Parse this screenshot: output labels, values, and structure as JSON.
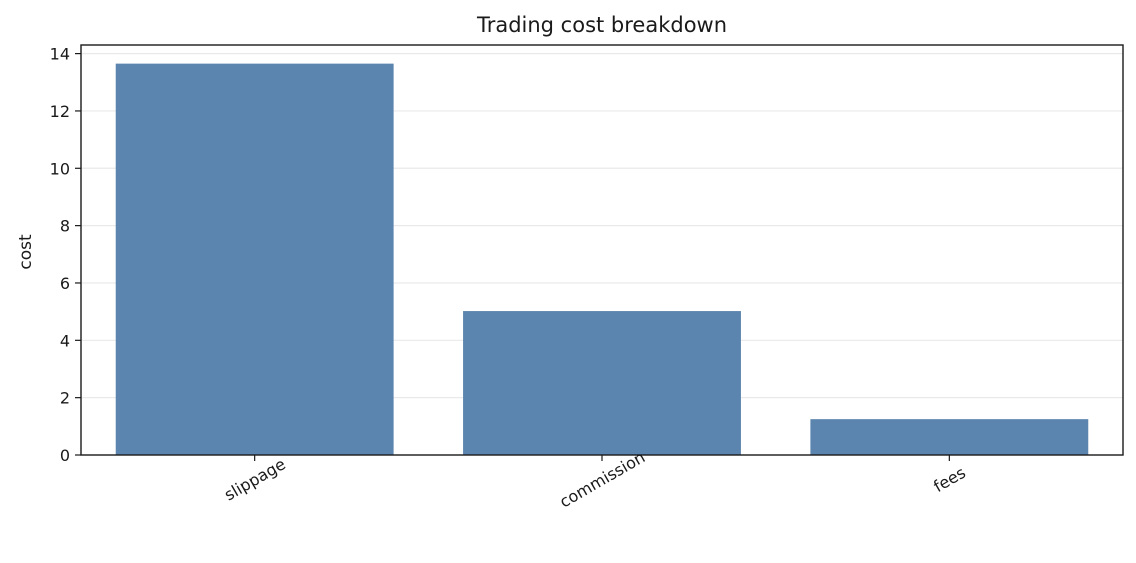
{
  "chart_data": {
    "type": "bar",
    "title": "Trading cost breakdown",
    "xlabel": "",
    "ylabel": "cost",
    "categories": [
      "slippage",
      "commission",
      "fees"
    ],
    "values": [
      13.65,
      5.02,
      1.25
    ],
    "ylim": [
      0,
      14.3
    ],
    "yticks": [
      0,
      2,
      4,
      6,
      8,
      10,
      12,
      14
    ],
    "grid": "y-dashed",
    "bar_color": "#5b84ae",
    "grid_color": "#e9e9e9",
    "axis_color": "#1a1a1a"
  }
}
